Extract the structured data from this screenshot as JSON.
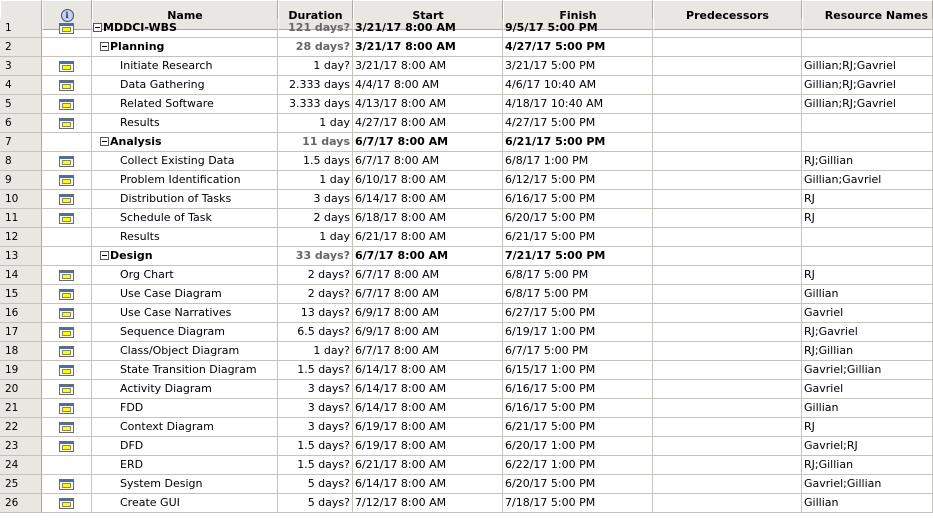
{
  "columns": {
    "id": "",
    "indicator": "i",
    "name": "Name",
    "duration": "Duration",
    "start": "Start",
    "finish": "Finish",
    "predecessors": "Predecessors",
    "resources": "Resource Names"
  },
  "rows": [
    {
      "id": "1",
      "icon": true,
      "level": 1,
      "summary": true,
      "name": "MDDCI-WBS",
      "duration": "121 days?",
      "start": "3/21/17 8:00 AM",
      "finish": "9/5/17 5:00 PM",
      "predecessors": "",
      "resources": ""
    },
    {
      "id": "2",
      "icon": false,
      "level": 2,
      "summary": true,
      "name": "Planning",
      "duration": "28 days?",
      "start": "3/21/17 8:00 AM",
      "finish": "4/27/17 5:00 PM",
      "predecessors": "",
      "resources": ""
    },
    {
      "id": "3",
      "icon": true,
      "level": 3,
      "summary": false,
      "name": "Initiate Research",
      "duration": "1 day?",
      "start": "3/21/17 8:00 AM",
      "finish": "3/21/17 5:00 PM",
      "predecessors": "",
      "resources": "Gillian;RJ;Gavriel"
    },
    {
      "id": "4",
      "icon": true,
      "level": 3,
      "summary": false,
      "name": "Data Gathering",
      "duration": "2.333 days",
      "start": "4/4/17 8:00 AM",
      "finish": "4/6/17 10:40 AM",
      "predecessors": "",
      "resources": "Gillian;RJ;Gavriel"
    },
    {
      "id": "5",
      "icon": true,
      "level": 3,
      "summary": false,
      "name": "Related Software",
      "duration": "3.333 days",
      "start": "4/13/17 8:00 AM",
      "finish": "4/18/17 10:40 AM",
      "predecessors": "",
      "resources": "Gillian;RJ;Gavriel"
    },
    {
      "id": "6",
      "icon": true,
      "level": 3,
      "summary": false,
      "name": "Results",
      "duration": "1 day",
      "start": "4/27/17 8:00 AM",
      "finish": "4/27/17 5:00 PM",
      "predecessors": "",
      "resources": ""
    },
    {
      "id": "7",
      "icon": false,
      "level": 2,
      "summary": true,
      "name": "Analysis",
      "duration": "11 days",
      "start": "6/7/17 8:00 AM",
      "finish": "6/21/17 5:00 PM",
      "predecessors": "",
      "resources": ""
    },
    {
      "id": "8",
      "icon": true,
      "level": 3,
      "summary": false,
      "name": "Collect Existing Data",
      "duration": "1.5 days",
      "start": "6/7/17 8:00 AM",
      "finish": "6/8/17 1:00 PM",
      "predecessors": "",
      "resources": "RJ;Gillian"
    },
    {
      "id": "9",
      "icon": true,
      "level": 3,
      "summary": false,
      "name": "Problem Identification",
      "duration": "1 day",
      "start": "6/10/17 8:00 AM",
      "finish": "6/12/17 5:00 PM",
      "predecessors": "",
      "resources": "Gillian;Gavriel"
    },
    {
      "id": "10",
      "icon": true,
      "level": 3,
      "summary": false,
      "name": "Distribution of Tasks",
      "duration": "3 days",
      "start": "6/14/17 8:00 AM",
      "finish": "6/16/17 5:00 PM",
      "predecessors": "",
      "resources": "RJ"
    },
    {
      "id": "11",
      "icon": true,
      "level": 3,
      "summary": false,
      "name": "Schedule of Task",
      "duration": "2 days",
      "start": "6/18/17 8:00 AM",
      "finish": "6/20/17 5:00 PM",
      "predecessors": "",
      "resources": "RJ"
    },
    {
      "id": "12",
      "icon": false,
      "level": 3,
      "summary": false,
      "name": "Results",
      "duration": "1 day",
      "start": "6/21/17 8:00 AM",
      "finish": "6/21/17 5:00 PM",
      "predecessors": "",
      "resources": ""
    },
    {
      "id": "13",
      "icon": false,
      "level": 2,
      "summary": true,
      "name": "Design",
      "duration": "33 days?",
      "start": "6/7/17 8:00 AM",
      "finish": "7/21/17 5:00 PM",
      "predecessors": "",
      "resources": ""
    },
    {
      "id": "14",
      "icon": true,
      "level": 3,
      "summary": false,
      "name": "Org Chart",
      "duration": "2 days?",
      "start": "6/7/17 8:00 AM",
      "finish": "6/8/17 5:00 PM",
      "predecessors": "",
      "resources": "RJ"
    },
    {
      "id": "15",
      "icon": true,
      "level": 3,
      "summary": false,
      "name": "Use Case Diagram",
      "duration": "2 days?",
      "start": "6/7/17 8:00 AM",
      "finish": "6/8/17 5:00 PM",
      "predecessors": "",
      "resources": "Gillian"
    },
    {
      "id": "16",
      "icon": true,
      "level": 3,
      "summary": false,
      "name": "Use Case Narratives",
      "duration": "13 days?",
      "start": "6/9/17 8:00 AM",
      "finish": "6/27/17 5:00 PM",
      "predecessors": "",
      "resources": "Gavriel"
    },
    {
      "id": "17",
      "icon": true,
      "level": 3,
      "summary": false,
      "name": "Sequence Diagram",
      "duration": "6.5 days?",
      "start": "6/9/17 8:00 AM",
      "finish": "6/19/17 1:00 PM",
      "predecessors": "",
      "resources": "RJ;Gavriel"
    },
    {
      "id": "18",
      "icon": true,
      "level": 3,
      "summary": false,
      "name": "Class/Object Diagram",
      "duration": "1 day?",
      "start": "6/7/17 8:00 AM",
      "finish": "6/7/17 5:00 PM",
      "predecessors": "",
      "resources": "RJ;Gillian"
    },
    {
      "id": "19",
      "icon": true,
      "level": 3,
      "summary": false,
      "name": "State Transition Diagram",
      "duration": "1.5 days?",
      "start": "6/14/17 8:00 AM",
      "finish": "6/15/17 1:00 PM",
      "predecessors": "",
      "resources": "Gavriel;Gillian"
    },
    {
      "id": "20",
      "icon": true,
      "level": 3,
      "summary": false,
      "name": "Activity Diagram",
      "duration": "3 days?",
      "start": "6/14/17 8:00 AM",
      "finish": "6/16/17 5:00 PM",
      "predecessors": "",
      "resources": "Gavriel"
    },
    {
      "id": "21",
      "icon": true,
      "level": 3,
      "summary": false,
      "name": "FDD",
      "duration": "3 days?",
      "start": "6/14/17 8:00 AM",
      "finish": "6/16/17 5:00 PM",
      "predecessors": "",
      "resources": "Gillian"
    },
    {
      "id": "22",
      "icon": true,
      "level": 3,
      "summary": false,
      "name": "Context Diagram",
      "duration": "3 days?",
      "start": "6/19/17 8:00 AM",
      "finish": "6/21/17 5:00 PM",
      "predecessors": "",
      "resources": "RJ"
    },
    {
      "id": "23",
      "icon": true,
      "level": 3,
      "summary": false,
      "name": "DFD",
      "duration": "1.5 days?",
      "start": "6/19/17 8:00 AM",
      "finish": "6/20/17 1:00 PM",
      "predecessors": "",
      "resources": "Gavriel;RJ"
    },
    {
      "id": "24",
      "icon": false,
      "level": 3,
      "summary": false,
      "name": "ERD",
      "duration": "1.5 days?",
      "start": "6/21/17 8:00 AM",
      "finish": "6/22/17 1:00 PM",
      "predecessors": "",
      "resources": "RJ;Gillian"
    },
    {
      "id": "25",
      "icon": true,
      "level": 3,
      "summary": false,
      "name": "System Design",
      "duration": "5 days?",
      "start": "6/14/17 8:00 AM",
      "finish": "6/20/17 5:00 PM",
      "predecessors": "",
      "resources": "Gavriel;Gillian"
    },
    {
      "id": "26",
      "icon": true,
      "level": 3,
      "summary": false,
      "name": "Create GUI",
      "duration": "5 days?",
      "start": "7/12/17 8:00 AM",
      "finish": "7/18/17 5:00 PM",
      "predecessors": "",
      "resources": "Gillian"
    }
  ]
}
